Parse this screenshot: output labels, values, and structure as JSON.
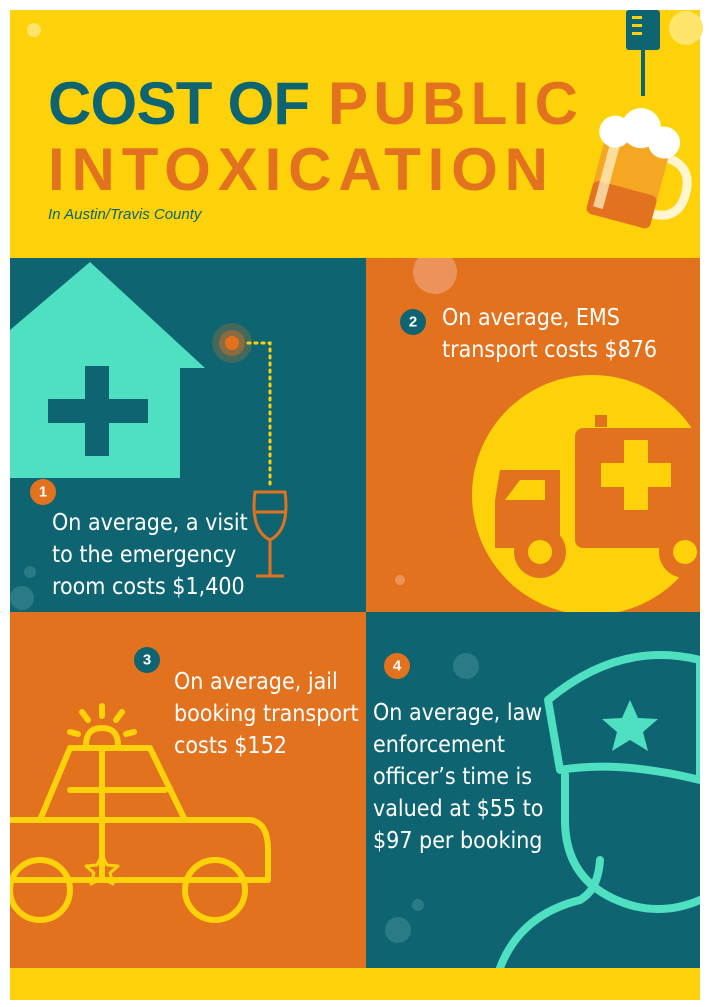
{
  "header": {
    "title_part1": "COST OF",
    "title_part2": "PUBLIC",
    "title_line2": "INTOXICATION",
    "subtitle": "In Austin/Travis County"
  },
  "panels": [
    {
      "number": "1",
      "lines": [
        "On average, a visit",
        "to the emergency",
        "room costs $1,400"
      ]
    },
    {
      "number": "2",
      "lines": [
        "On average, EMS",
        "transport costs $876"
      ]
    },
    {
      "number": "3",
      "lines": [
        "On average, jail",
        "booking transport",
        "costs $152"
      ]
    },
    {
      "number": "4",
      "lines": [
        "On average, law",
        "enforcement",
        "officer’s time is",
        "valued at $55 to",
        "$97 per booking"
      ]
    }
  ]
}
